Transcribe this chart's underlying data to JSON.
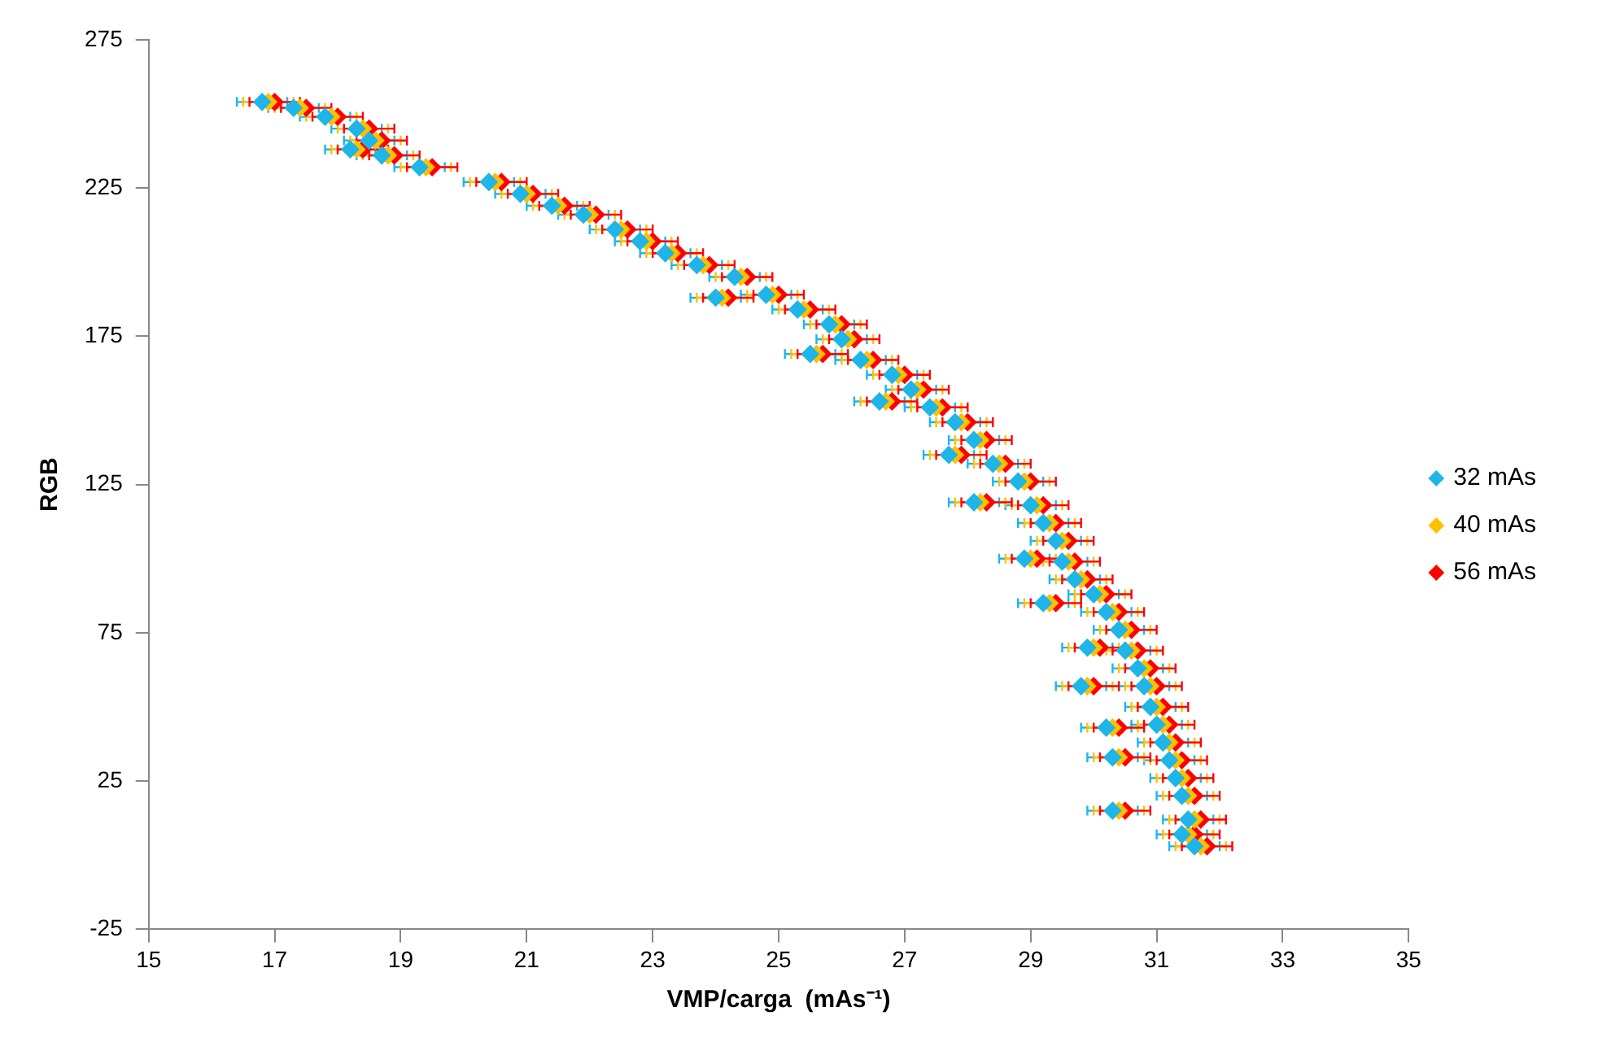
{
  "chart_data": {
    "type": "scatter",
    "xlabel": "VMP/carga  (mAs⁻¹)",
    "ylabel": "RGB",
    "xlim": [
      15,
      35
    ],
    "xticks": [
      15,
      17,
      19,
      21,
      23,
      25,
      27,
      29,
      31,
      33,
      35
    ],
    "ylim": [
      -25,
      275
    ],
    "yticks": [
      -25,
      25,
      75,
      125,
      175,
      225,
      275
    ],
    "grid": false,
    "legend": "right",
    "marker": "diamond",
    "series": [
      {
        "name": "32 mAs",
        "color": "#1fb5e8",
        "x": [
          16.8,
          17.3,
          17.8,
          18.3,
          18.5,
          18.2,
          18.7,
          19.3,
          20.4,
          20.9,
          21.4,
          21.9,
          22.4,
          22.8,
          23.2,
          23.7,
          24.3,
          24.0,
          24.8,
          25.3,
          25.8,
          26.0,
          25.5,
          26.3,
          26.8,
          27.1,
          26.6,
          27.4,
          27.8,
          28.1,
          27.7,
          28.4,
          28.8,
          28.1,
          29.0,
          29.2,
          29.4,
          28.9,
          29.5,
          29.7,
          30.0,
          29.2,
          30.2,
          30.4,
          29.9,
          30.5,
          30.7,
          29.8,
          30.8,
          30.9,
          30.2,
          31.0,
          31.1,
          30.3,
          31.2,
          31.3,
          31.4,
          30.3,
          31.5,
          31.4,
          31.6
        ],
        "values": [
          254,
          252,
          249,
          245,
          241,
          238,
          236,
          232,
          227,
          223,
          219,
          216,
          211,
          207,
          203,
          199,
          195,
          188,
          189,
          184,
          179,
          174,
          169,
          167,
          162,
          157,
          153,
          151,
          146,
          140,
          135,
          132,
          126,
          119,
          118,
          112,
          106,
          100,
          99,
          93,
          88,
          85,
          82,
          76,
          70,
          69,
          63,
          57,
          57,
          50,
          43,
          44,
          38,
          33,
          32,
          26,
          20,
          15,
          12,
          7,
          3
        ],
        "xerrors": [
          0.4,
          0.4,
          0.4,
          0.4,
          0.4,
          0.4,
          0.4,
          0.4,
          0.4,
          0.4,
          0.4,
          0.4,
          0.4,
          0.4,
          0.4,
          0.4,
          0.4,
          0.4,
          0.4,
          0.4,
          0.4,
          0.4,
          0.4,
          0.4,
          0.4,
          0.4,
          0.4,
          0.4,
          0.4,
          0.4,
          0.4,
          0.4,
          0.4,
          0.4,
          0.4,
          0.4,
          0.4,
          0.4,
          0.4,
          0.4,
          0.4,
          0.4,
          0.4,
          0.4,
          0.4,
          0.4,
          0.4,
          0.4,
          0.4,
          0.4,
          0.4,
          0.4,
          0.4,
          0.4,
          0.4,
          0.4,
          0.4,
          0.4,
          0.4,
          0.4,
          0.4
        ]
      },
      {
        "name": "40 mAs",
        "color": "#ffc000",
        "x": [
          16.9,
          17.4,
          17.9,
          18.4,
          18.6,
          18.3,
          18.8,
          19.4,
          20.5,
          21.0,
          21.5,
          22.0,
          22.5,
          22.9,
          23.3,
          23.8,
          24.4,
          24.1,
          24.9,
          25.4,
          25.9,
          26.1,
          25.6,
          26.4,
          26.9,
          27.2,
          26.7,
          27.5,
          27.9,
          28.2,
          27.8,
          28.5,
          28.9,
          28.2,
          29.1,
          29.3,
          29.5,
          29.0,
          29.6,
          29.8,
          30.1,
          29.3,
          30.3,
          30.5,
          30.0,
          30.6,
          30.8,
          29.9,
          30.9,
          31.0,
          30.3,
          31.1,
          31.2,
          30.4,
          31.3,
          31.4,
          31.5,
          30.4,
          31.6,
          31.5,
          31.7
        ],
        "values": [
          254,
          252,
          249,
          245,
          241,
          238,
          236,
          232,
          227,
          223,
          219,
          216,
          211,
          207,
          203,
          199,
          195,
          188,
          189,
          184,
          179,
          174,
          169,
          167,
          162,
          157,
          153,
          151,
          146,
          140,
          135,
          132,
          126,
          119,
          118,
          112,
          106,
          100,
          99,
          93,
          88,
          85,
          82,
          76,
          70,
          69,
          63,
          57,
          57,
          50,
          43,
          44,
          38,
          33,
          32,
          26,
          20,
          15,
          12,
          7,
          3
        ],
        "xerrors": [
          0.4,
          0.4,
          0.4,
          0.4,
          0.4,
          0.4,
          0.4,
          0.4,
          0.4,
          0.4,
          0.4,
          0.4,
          0.4,
          0.4,
          0.4,
          0.4,
          0.4,
          0.4,
          0.4,
          0.4,
          0.4,
          0.4,
          0.4,
          0.4,
          0.4,
          0.4,
          0.4,
          0.4,
          0.4,
          0.4,
          0.4,
          0.4,
          0.4,
          0.4,
          0.4,
          0.4,
          0.4,
          0.4,
          0.4,
          0.4,
          0.4,
          0.4,
          0.4,
          0.4,
          0.4,
          0.4,
          0.4,
          0.4,
          0.4,
          0.4,
          0.4,
          0.4,
          0.4,
          0.4,
          0.4,
          0.4,
          0.4,
          0.4,
          0.4,
          0.4,
          0.4
        ]
      },
      {
        "name": "56 mAs",
        "color": "#ff0000",
        "x": [
          17.0,
          17.5,
          18.0,
          18.5,
          18.7,
          18.4,
          18.9,
          19.5,
          20.6,
          21.1,
          21.6,
          22.1,
          22.6,
          23.0,
          23.4,
          23.9,
          24.5,
          24.2,
          25.0,
          25.5,
          26.0,
          26.2,
          25.7,
          26.5,
          27.0,
          27.3,
          26.8,
          27.6,
          28.0,
          28.3,
          27.9,
          28.6,
          29.0,
          28.3,
          29.2,
          29.4,
          29.6,
          29.1,
          29.7,
          29.9,
          30.2,
          29.4,
          30.4,
          30.6,
          30.1,
          30.7,
          30.9,
          30.0,
          31.0,
          31.1,
          30.4,
          31.2,
          31.3,
          30.5,
          31.4,
          31.5,
          31.6,
          30.5,
          31.7,
          31.6,
          31.8
        ],
        "values": [
          254,
          252,
          249,
          245,
          241,
          238,
          236,
          232,
          227,
          223,
          219,
          216,
          211,
          207,
          203,
          199,
          195,
          188,
          189,
          184,
          179,
          174,
          169,
          167,
          162,
          157,
          153,
          151,
          146,
          140,
          135,
          132,
          126,
          119,
          118,
          112,
          106,
          100,
          99,
          93,
          88,
          85,
          82,
          76,
          70,
          69,
          63,
          57,
          57,
          50,
          43,
          44,
          38,
          33,
          32,
          26,
          20,
          15,
          12,
          7,
          3
        ],
        "xerrors": [
          0.4,
          0.4,
          0.4,
          0.4,
          0.4,
          0.4,
          0.4,
          0.4,
          0.4,
          0.4,
          0.4,
          0.4,
          0.4,
          0.4,
          0.4,
          0.4,
          0.4,
          0.4,
          0.4,
          0.4,
          0.4,
          0.4,
          0.4,
          0.4,
          0.4,
          0.4,
          0.4,
          0.4,
          0.4,
          0.4,
          0.4,
          0.4,
          0.4,
          0.4,
          0.4,
          0.4,
          0.4,
          0.4,
          0.4,
          0.4,
          0.4,
          0.4,
          0.4,
          0.4,
          0.4,
          0.4,
          0.4,
          0.4,
          0.4,
          0.4,
          0.4,
          0.4,
          0.4,
          0.4,
          0.4,
          0.4,
          0.4,
          0.4,
          0.4,
          0.4,
          0.4
        ]
      }
    ]
  }
}
